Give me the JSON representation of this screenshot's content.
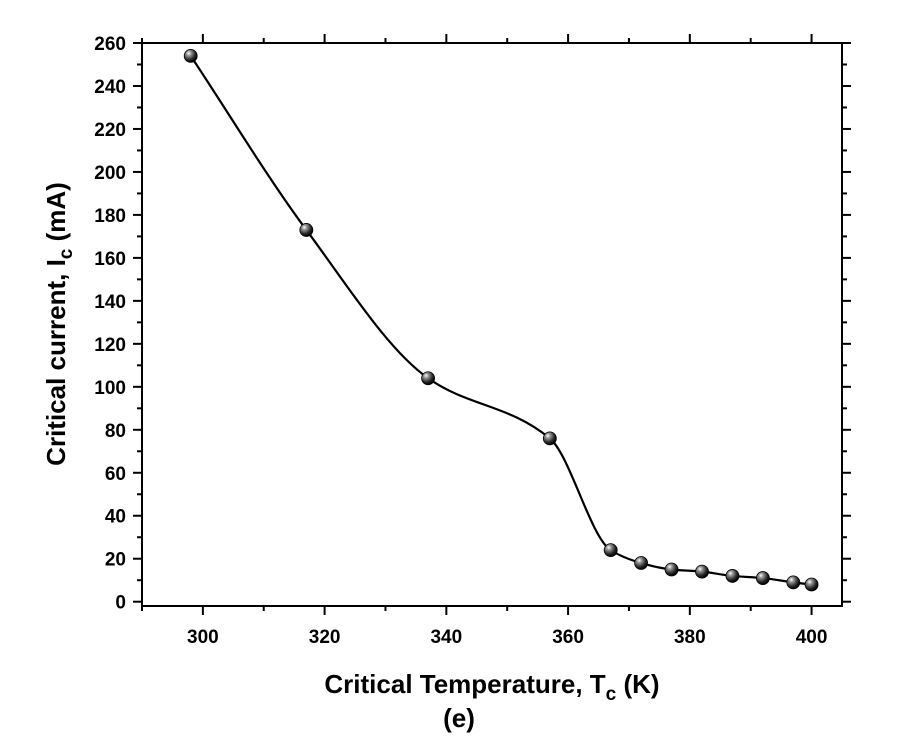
{
  "chart_data": {
    "type": "line",
    "xlabel": {
      "main": "Critical Temperature, T",
      "sub": "c",
      "unit": " (K)"
    },
    "ylabel": {
      "main": "Critical current, I",
      "sub": "c",
      "unit": " (mA)"
    },
    "caption": "(e)",
    "xlim": [
      290,
      405
    ],
    "ylim": [
      -2,
      260
    ],
    "x_ticks": [
      "300",
      "320",
      "340",
      "360",
      "380",
      "400"
    ],
    "y_ticks": [
      "0",
      "20",
      "40",
      "60",
      "80",
      "100",
      "120",
      "140",
      "160",
      "180",
      "200",
      "220",
      "240",
      "260"
    ],
    "grid": false,
    "marker": "sphere",
    "series": [
      {
        "x": [
          298,
          317,
          337,
          357,
          367,
          372,
          377,
          382,
          387,
          392,
          397,
          400
        ],
        "y": [
          254,
          173,
          104,
          76,
          24,
          18,
          15,
          14,
          12,
          11,
          9,
          8
        ]
      }
    ]
  }
}
